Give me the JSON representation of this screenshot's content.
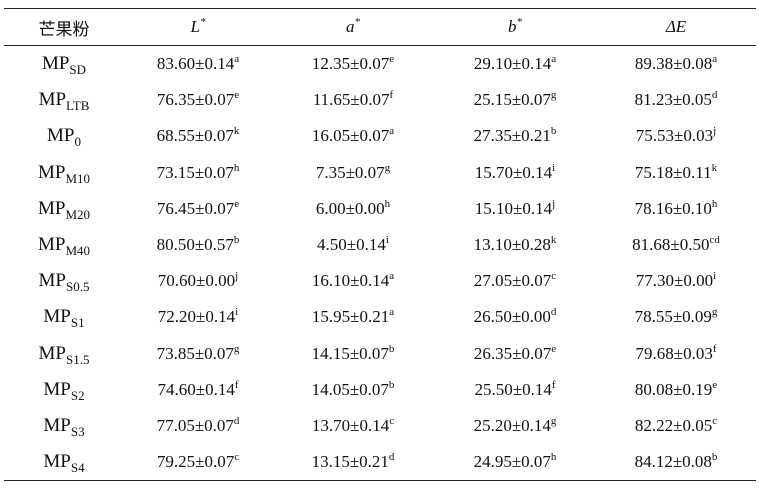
{
  "table": {
    "header": [
      {
        "text": "芒果粉"
      },
      {
        "text": "L",
        "sup": "*"
      },
      {
        "text": "a",
        "sup": "*"
      },
      {
        "text": "b",
        "sup": "*"
      },
      {
        "text": "ΔE"
      }
    ],
    "rows": [
      [
        {
          "base": "MP",
          "sub": "SD"
        },
        {
          "value": "83.60±0.14",
          "sup": "a"
        },
        {
          "value": "12.35±0.07",
          "sup": "e"
        },
        {
          "value": "29.10±0.14",
          "sup": "a"
        },
        {
          "value": "89.38±0.08",
          "sup": "a"
        }
      ],
      [
        {
          "base": "MP",
          "sub": "LTB"
        },
        {
          "value": "76.35±0.07",
          "sup": "e"
        },
        {
          "value": "11.65±0.07",
          "sup": "f"
        },
        {
          "value": "25.15±0.07",
          "sup": "g"
        },
        {
          "value": "81.23±0.05",
          "sup": "d"
        }
      ],
      [
        {
          "base": "MP",
          "sub": "0"
        },
        {
          "value": "68.55±0.07",
          "sup": "k"
        },
        {
          "value": "16.05±0.07",
          "sup": "a"
        },
        {
          "value": "27.35±0.21",
          "sup": "b"
        },
        {
          "value": "75.53±0.03",
          "sup": "j"
        }
      ],
      [
        {
          "base": "MP",
          "sub": "M10"
        },
        {
          "value": "73.15±0.07",
          "sup": "h"
        },
        {
          "value": "7.35±0.07",
          "sup": "g"
        },
        {
          "value": "15.70±0.14",
          "sup": "i"
        },
        {
          "value": "75.18±0.11",
          "sup": "k"
        }
      ],
      [
        {
          "base": "MP",
          "sub": "M20"
        },
        {
          "value": "76.45±0.07",
          "sup": "e"
        },
        {
          "value": "6.00±0.00",
          "sup": "h"
        },
        {
          "value": "15.10±0.14",
          "sup": "j"
        },
        {
          "value": "78.16±0.10",
          "sup": "h"
        }
      ],
      [
        {
          "base": "MP",
          "sub": "M40"
        },
        {
          "value": "80.50±0.57",
          "sup": "b"
        },
        {
          "value": "4.50±0.14",
          "sup": "i"
        },
        {
          "value": "13.10±0.28",
          "sup": "k"
        },
        {
          "value": "81.68±0.50",
          "sup": "cd"
        }
      ],
      [
        {
          "base": "MP",
          "sub": "S0.5"
        },
        {
          "value": "70.60±0.00",
          "sup": "j"
        },
        {
          "value": "16.10±0.14",
          "sup": "a"
        },
        {
          "value": "27.05±0.07",
          "sup": "c"
        },
        {
          "value": "77.30±0.00",
          "sup": "i"
        }
      ],
      [
        {
          "base": "MP",
          "sub": "S1"
        },
        {
          "value": "72.20±0.14",
          "sup": "i"
        },
        {
          "value": "15.95±0.21",
          "sup": "a"
        },
        {
          "value": "26.50±0.00",
          "sup": "d"
        },
        {
          "value": "78.55±0.09",
          "sup": "g"
        }
      ],
      [
        {
          "base": "MP",
          "sub": "S1.5"
        },
        {
          "value": "73.85±0.07",
          "sup": "g"
        },
        {
          "value": "14.15±0.07",
          "sup": "b"
        },
        {
          "value": "26.35±0.07",
          "sup": "e"
        },
        {
          "value": "79.68±0.03",
          "sup": "f"
        }
      ],
      [
        {
          "base": "MP",
          "sub": "S2"
        },
        {
          "value": "74.60±0.14",
          "sup": "f"
        },
        {
          "value": "14.05±0.07",
          "sup": "b"
        },
        {
          "value": "25.50±0.14",
          "sup": "f"
        },
        {
          "value": "80.08±0.19",
          "sup": "e"
        }
      ],
      [
        {
          "base": "MP",
          "sub": "S3"
        },
        {
          "value": "77.05±0.07",
          "sup": "d"
        },
        {
          "value": "13.70±0.14",
          "sup": "c"
        },
        {
          "value": "25.20±0.14",
          "sup": "g"
        },
        {
          "value": "82.22±0.05",
          "sup": "c"
        }
      ],
      [
        {
          "base": "MP",
          "sub": "S4"
        },
        {
          "value": "79.25±0.07",
          "sup": "c"
        },
        {
          "value": "13.15±0.21",
          "sup": "d"
        },
        {
          "value": "24.95±0.07",
          "sup": "h"
        },
        {
          "value": "84.12±0.08",
          "sup": "b"
        }
      ]
    ]
  }
}
